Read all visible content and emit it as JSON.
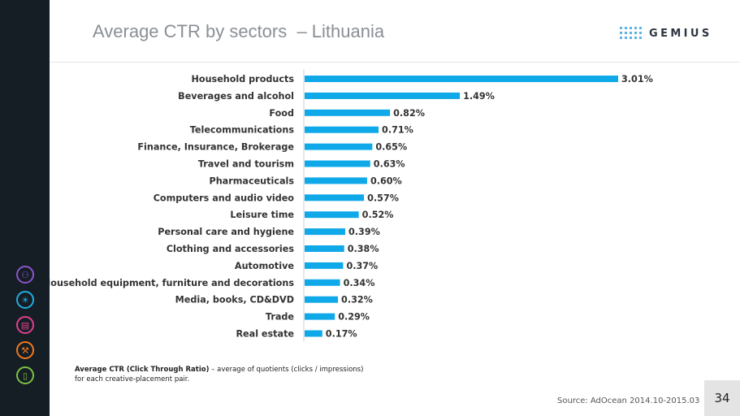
{
  "title": "Average CTR by sectors  – Lithuania",
  "logo": {
    "text": "GEMIUS",
    "icon": "gemius-dots-logo",
    "color": "#5ab4e6"
  },
  "sidebar": {
    "icons": [
      {
        "name": "people-icon",
        "color": "#8c55c8"
      },
      {
        "name": "lightbulb-icon",
        "color": "#1faee0"
      },
      {
        "name": "shopping-cart-icon",
        "color": "#e0418e"
      },
      {
        "name": "wrench-icon",
        "color": "#f07a1e"
      },
      {
        "name": "mobile-device-icon",
        "color": "#7cc242"
      }
    ]
  },
  "chart_data": {
    "type": "bar",
    "orientation": "horizontal",
    "categories": [
      "Household products",
      "Beverages and alcohol",
      "Food",
      "Telecommunications",
      "Finance, Insurance, Brokerage",
      "Travel and tourism",
      "Pharmaceuticals",
      "Computers and audio video",
      "Leisure time",
      "Personal care and hygiene",
      "Clothing and accessories",
      "Automotive",
      "Household equipment, furniture and decorations",
      "Media, books, CD&DVD",
      "Trade",
      "Real estate"
    ],
    "values": [
      3.01,
      1.49,
      0.82,
      0.71,
      0.65,
      0.63,
      0.6,
      0.57,
      0.52,
      0.39,
      0.38,
      0.37,
      0.34,
      0.32,
      0.29,
      0.17
    ],
    "value_labels": [
      "3.01%",
      "1.49%",
      "0.82%",
      "0.71%",
      "0.65%",
      "0.63%",
      "0.60%",
      "0.57%",
      "0.52%",
      "0.39%",
      "0.38%",
      "0.37%",
      "0.34%",
      "0.32%",
      "0.29%",
      "0.17%"
    ],
    "unit": "%",
    "xlim": [
      0,
      3.01
    ],
    "bar_color": "#0fa8e8",
    "grid": false,
    "legend": "none"
  },
  "footnote": {
    "term": "Average CTR (Click Through Ratio)",
    "definition": " – average of quotients (clicks / impressions) for each creative-placement pair."
  },
  "source": "Source: AdOcean 2014.10-2015.03",
  "page_number": "34"
}
